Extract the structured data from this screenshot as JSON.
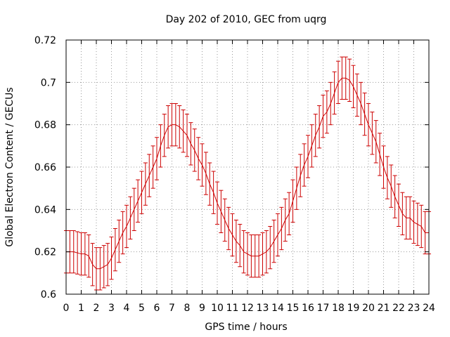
{
  "chart_data": {
    "type": "line",
    "title": "Day 202 of 2010, GEC from uqrg",
    "xlabel": "GPS time / hours",
    "ylabel": "Global Electron Content / GECUs",
    "xlim": [
      0,
      24
    ],
    "ylim": [
      0.6,
      0.72
    ],
    "x_ticks": [
      0,
      1,
      2,
      3,
      4,
      5,
      6,
      7,
      8,
      9,
      10,
      11,
      12,
      13,
      14,
      15,
      16,
      17,
      18,
      19,
      20,
      21,
      22,
      23,
      24
    ],
    "y_ticks": [
      0.6,
      0.62,
      0.64,
      0.66,
      0.68,
      0.7,
      0.72
    ],
    "x_tick_labels": [
      "0",
      "1",
      "2",
      "3",
      "4",
      "5",
      "6",
      "7",
      "8",
      "9",
      "10",
      "11",
      "12",
      "13",
      "14",
      "15",
      "16",
      "17",
      "18",
      "19",
      "20",
      "21",
      "22",
      "23",
      "24"
    ],
    "y_tick_labels": [
      "0.6",
      "0.62",
      "0.64",
      "0.66",
      "0.68",
      "0.7",
      "0.72"
    ],
    "grid": true,
    "error_bar": 0.01,
    "color": "#cc0000",
    "series": [
      {
        "x": [
          0,
          0.25,
          0.5,
          0.75,
          1,
          1.25,
          1.5,
          1.75,
          2,
          2.25,
          2.5,
          2.75,
          3,
          3.25,
          3.5,
          3.75,
          4,
          4.25,
          4.5,
          4.75,
          5,
          5.25,
          5.5,
          5.75,
          6,
          6.25,
          6.5,
          6.75,
          7,
          7.25,
          7.5,
          7.75,
          8,
          8.25,
          8.5,
          8.75,
          9,
          9.25,
          9.5,
          9.75,
          10,
          10.25,
          10.5,
          10.75,
          11,
          11.25,
          11.5,
          11.75,
          12,
          12.25,
          12.5,
          12.75,
          13,
          13.25,
          13.5,
          13.75,
          14,
          14.25,
          14.5,
          14.75,
          15,
          15.25,
          15.5,
          15.75,
          16,
          16.25,
          16.5,
          16.75,
          17,
          17.25,
          17.5,
          17.75,
          18,
          18.25,
          18.5,
          18.75,
          19,
          19.25,
          19.5,
          19.75,
          20,
          20.25,
          20.5,
          20.75,
          21,
          21.25,
          21.5,
          21.75,
          22,
          22.25,
          22.5,
          22.75,
          23,
          23.25,
          23.5,
          23.75,
          24
        ],
        "values": [
          0.62,
          0.62,
          0.62,
          0.6195,
          0.619,
          0.619,
          0.618,
          0.614,
          0.612,
          0.612,
          0.613,
          0.614,
          0.617,
          0.621,
          0.625,
          0.629,
          0.632,
          0.636,
          0.64,
          0.644,
          0.648,
          0.652,
          0.656,
          0.66,
          0.664,
          0.67,
          0.675,
          0.679,
          0.68,
          0.68,
          0.679,
          0.677,
          0.675,
          0.671,
          0.668,
          0.664,
          0.661,
          0.657,
          0.652,
          0.648,
          0.643,
          0.639,
          0.635,
          0.631,
          0.628,
          0.625,
          0.623,
          0.62,
          0.619,
          0.618,
          0.618,
          0.618,
          0.619,
          0.62,
          0.622,
          0.625,
          0.628,
          0.631,
          0.635,
          0.638,
          0.644,
          0.65,
          0.656,
          0.661,
          0.665,
          0.67,
          0.675,
          0.679,
          0.684,
          0.686,
          0.69,
          0.695,
          0.7,
          0.702,
          0.702,
          0.701,
          0.698,
          0.694,
          0.69,
          0.685,
          0.68,
          0.676,
          0.672,
          0.666,
          0.66,
          0.655,
          0.651,
          0.646,
          0.642,
          0.638,
          0.636,
          0.636,
          0.634,
          0.633,
          0.632,
          0.629,
          0.629
        ]
      }
    ]
  }
}
